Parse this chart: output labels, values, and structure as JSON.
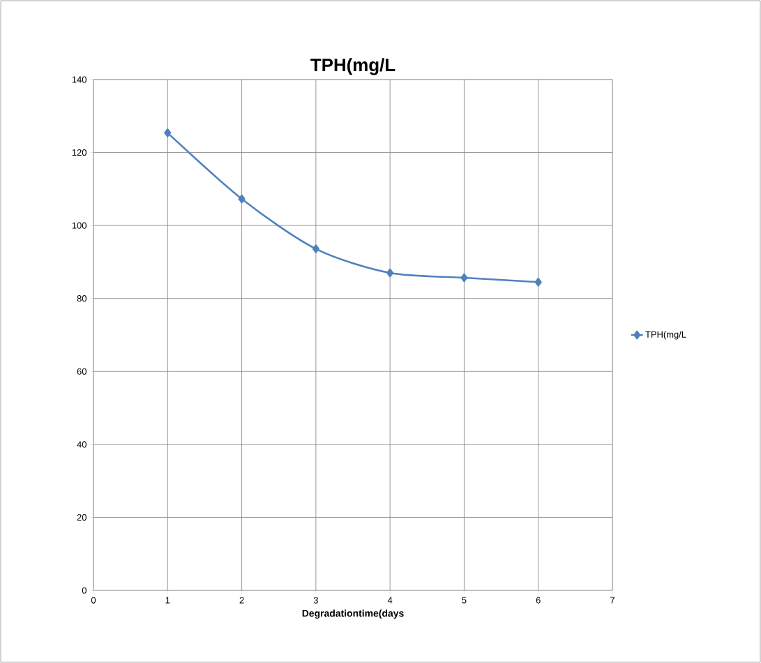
{
  "chart_data": {
    "type": "line",
    "title": "TPH(mg/L",
    "xlabel": "Degradationtime(days",
    "x": [
      1,
      2,
      3,
      4,
      5,
      6
    ],
    "series": [
      {
        "name": "TPH(mg/L",
        "color": "#4f81bd",
        "values": [
          125.4,
          107.3,
          93.6,
          87.0,
          85.7,
          84.5
        ]
      }
    ],
    "xlim": [
      0,
      7
    ],
    "xticks": [
      0,
      1,
      2,
      3,
      4,
      5,
      6,
      7
    ],
    "ylim": [
      0,
      140
    ],
    "yticks": [
      0,
      20,
      40,
      60,
      80,
      100,
      120,
      140
    ],
    "grid": true,
    "legend": "right",
    "marker": "diamond",
    "line_style": "solid"
  }
}
